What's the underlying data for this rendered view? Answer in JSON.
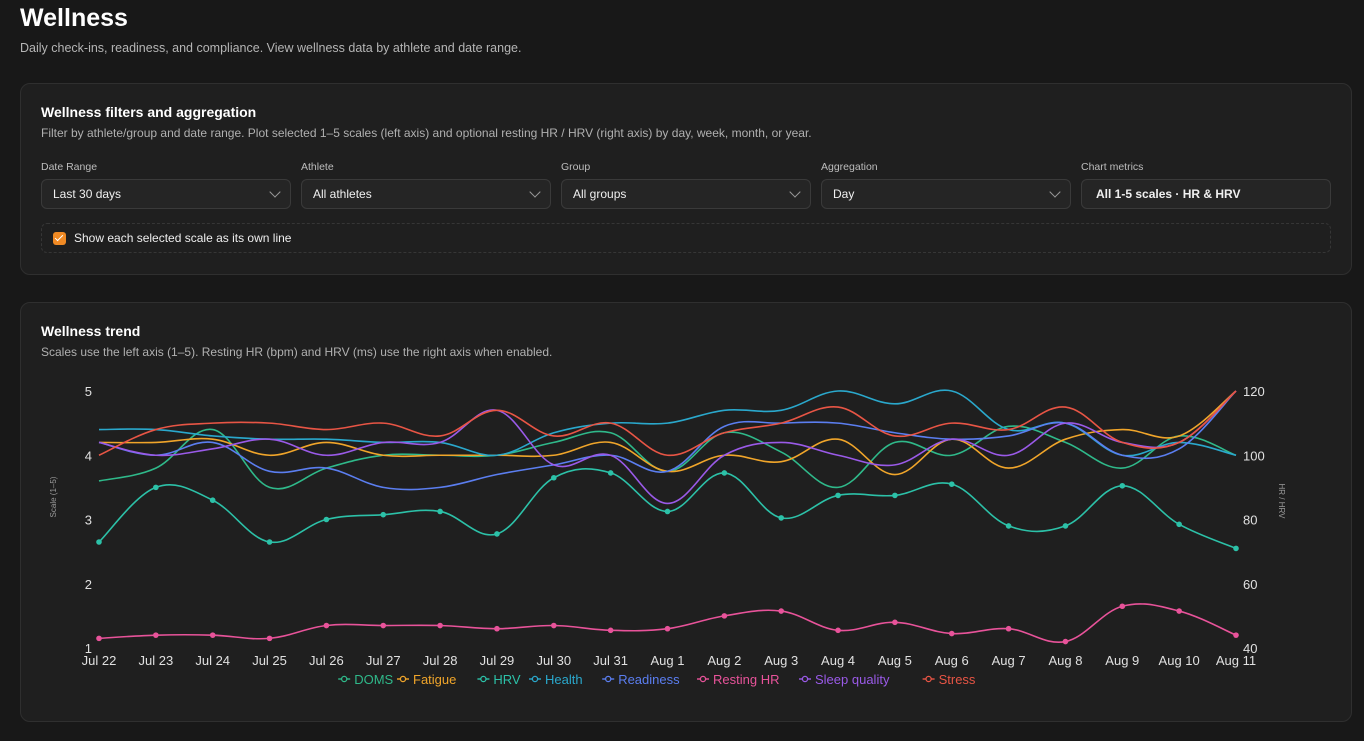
{
  "page": {
    "title": "Wellness",
    "subtitle": "Daily check-ins, readiness, and compliance. View wellness data by athlete and date range."
  },
  "filters": {
    "title": "Wellness filters and aggregation",
    "description": "Filter by athlete/group and date range. Plot selected 1–5 scales (left axis) and optional resting HR / HRV (right axis) by day, week, month, or year.",
    "fields": [
      {
        "label": "Date Range",
        "value": "Last 30 days"
      },
      {
        "label": "Athlete",
        "value": "All athletes"
      },
      {
        "label": "Group",
        "value": "All groups"
      },
      {
        "label": "Aggregation",
        "value": "Day"
      },
      {
        "label": "Chart metrics",
        "value": "All 1-5 scales · HR & HRV"
      }
    ],
    "toggle_label": "Show each selected scale as its own line",
    "toggle_checked": true,
    "accent_color": "#f08a24"
  },
  "trend": {
    "title": "Wellness trend",
    "description": "Scales use the left axis (1–5). Resting HR (bpm) and HRV (ms) use the right axis when enabled."
  },
  "chart_data": {
    "type": "line",
    "x": [
      "Jul 22",
      "Jul 23",
      "Jul 24",
      "Jul 25",
      "Jul 26",
      "Jul 27",
      "Jul 28",
      "Jul 29",
      "Jul 30",
      "Jul 31",
      "Aug 1",
      "Aug 2",
      "Aug 3",
      "Aug 4",
      "Aug 5",
      "Aug 6",
      "Aug 7",
      "Aug 8",
      "Aug 9",
      "Aug 10",
      "Aug 11"
    ],
    "y_left": {
      "label": "Scale (1–5)",
      "range": [
        1,
        5
      ],
      "ticks": [
        1,
        2,
        3,
        4,
        5
      ]
    },
    "y_right": {
      "label": "HR / HRV",
      "range": [
        40,
        120
      ],
      "ticks": [
        40,
        60,
        80,
        100,
        120
      ]
    },
    "grid": false,
    "legend_position": "bottom",
    "series": [
      {
        "name": "DOMS",
        "axis": "left",
        "color": "#2fb98a",
        "markers": false,
        "values": [
          3.6,
          3.8,
          4.4,
          3.5,
          3.8,
          4.0,
          4.0,
          4.0,
          4.2,
          4.35,
          3.75,
          4.35,
          4.05,
          3.5,
          4.2,
          4.0,
          4.45,
          4.2,
          3.8,
          4.3,
          4.0
        ]
      },
      {
        "name": "Fatigue",
        "axis": "left",
        "color": "#f0a52a",
        "markers": false,
        "values": [
          4.2,
          4.2,
          4.25,
          4.0,
          4.2,
          4.0,
          4.0,
          4.0,
          4.0,
          4.2,
          3.75,
          4.0,
          3.9,
          4.25,
          3.7,
          4.25,
          3.8,
          4.25,
          4.4,
          4.3,
          5.0
        ]
      },
      {
        "name": "HRV",
        "axis": "right",
        "color": "#2cc1a8",
        "markers": true,
        "values": [
          73,
          90,
          86,
          73,
          80,
          81.5,
          82.5,
          75.5,
          93,
          94.5,
          82.5,
          94.5,
          80.5,
          87.5,
          87.5,
          91,
          78,
          78,
          90.5,
          78.5,
          71
        ]
      },
      {
        "name": "Health",
        "axis": "left",
        "color": "#2aa8cc",
        "markers": false,
        "values": [
          4.4,
          4.4,
          4.3,
          4.25,
          4.25,
          4.2,
          4.2,
          4.0,
          4.35,
          4.5,
          4.5,
          4.7,
          4.7,
          5.0,
          4.8,
          5.0,
          4.4,
          4.5,
          4.0,
          4.2,
          4.0
        ]
      },
      {
        "name": "Readiness",
        "axis": "left",
        "color": "#5b7ef0",
        "markers": false,
        "values": [
          4.2,
          4.0,
          4.2,
          3.75,
          3.8,
          3.5,
          3.5,
          3.7,
          3.85,
          4.0,
          3.75,
          4.45,
          4.5,
          4.5,
          4.35,
          4.25,
          4.3,
          4.5,
          4.0,
          4.1,
          5.0
        ]
      },
      {
        "name": "Resting HR",
        "axis": "right",
        "color": "#e8539a",
        "markers": true,
        "values": [
          43,
          44,
          44,
          43,
          47,
          47,
          47,
          46,
          47,
          45.5,
          46,
          50,
          51.5,
          45.5,
          48,
          44.5,
          46,
          42,
          53,
          51.5,
          44
        ]
      },
      {
        "name": "Sleep quality",
        "axis": "left",
        "color": "#9a5ae8",
        "markers": false,
        "values": [
          4.2,
          4.0,
          4.1,
          4.25,
          4.0,
          4.2,
          4.2,
          4.7,
          3.85,
          4.0,
          3.25,
          4.0,
          4.2,
          4.0,
          3.85,
          4.25,
          4.0,
          4.5,
          4.2,
          4.2,
          5.0
        ]
      },
      {
        "name": "Stress",
        "axis": "left",
        "color": "#e85545",
        "markers": false,
        "values": [
          4.0,
          4.4,
          4.5,
          4.5,
          4.4,
          4.5,
          4.3,
          4.7,
          4.3,
          4.5,
          4.0,
          4.35,
          4.5,
          4.75,
          4.3,
          4.5,
          4.4,
          4.75,
          4.2,
          4.2,
          5.0
        ]
      }
    ]
  }
}
